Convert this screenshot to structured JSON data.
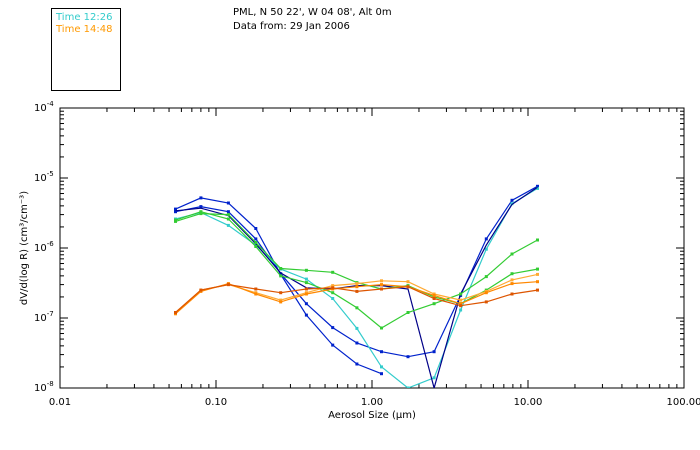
{
  "header": {
    "location": "PML, N 50 22', W 04 08', Alt 0m",
    "date": "Data from: 29 Jan 2006"
  },
  "legend": [
    {
      "label": "Time 12:26",
      "color": "#33cccc"
    },
    {
      "label": "Time 14:48",
      "color": "#ff9900"
    }
  ],
  "chart_data": {
    "type": "line",
    "title": "",
    "xlabel": "Aerosol Size (μm)",
    "ylabel": "dV/d(log R) (cm³/cm⁻³)",
    "xscale": "log",
    "yscale": "log",
    "xlim": [
      0.01,
      100
    ],
    "ylim": [
      1e-08,
      0.0001
    ],
    "x_tick_labels": [
      "0.01",
      "0.10",
      "1.00",
      "10.00",
      "100.00"
    ],
    "y_tick_labels": [
      {
        "mantissa": "10",
        "exp": "-8"
      },
      {
        "mantissa": "10",
        "exp": "-7"
      },
      {
        "mantissa": "10",
        "exp": "-6"
      },
      {
        "mantissa": "10",
        "exp": "-5"
      },
      {
        "mantissa": "10",
        "exp": "-4"
      }
    ],
    "series": [
      {
        "name": "blue-1",
        "color": "#0022cc",
        "marker": true,
        "x": [
          0.055,
          0.08,
          0.12,
          0.18,
          0.26,
          0.38,
          0.56,
          0.8,
          1.15
        ],
        "y": [
          3.6e-06,
          5.2e-06,
          4.4e-06,
          1.9e-06,
          4.2e-07,
          1.1e-07,
          4.1e-08,
          2.2e-08,
          1.6e-08
        ]
      },
      {
        "name": "blue-2",
        "color": "#0022cc",
        "marker": true,
        "x": [
          0.055,
          0.08,
          0.12,
          0.18,
          0.26,
          0.38,
          0.56,
          0.8,
          1.15,
          1.7,
          2.5,
          3.7,
          5.4,
          7.9,
          11.5
        ],
        "y": [
          3.3e-06,
          3.9e-06,
          3.3e-06,
          1.35e-06,
          4.3e-07,
          1.6e-07,
          7.3e-08,
          4.4e-08,
          3.3e-08,
          2.8e-08,
          3.3e-08,
          2.1e-07,
          1.35e-06,
          4.8e-06,
          7.6e-06
        ]
      },
      {
        "name": "cyan",
        "color": "#33cccc",
        "marker": true,
        "x": [
          0.055,
          0.08,
          0.12,
          0.18,
          0.26,
          0.38,
          0.56,
          0.8,
          1.15,
          1.7,
          2.5,
          3.7,
          5.4,
          7.9,
          11.5
        ],
        "y": [
          2.6e-06,
          3.2e-06,
          2.1e-06,
          1.1e-06,
          5e-07,
          3.6e-07,
          1.9e-07,
          7.1e-08,
          2e-08,
          1e-08,
          1.4e-08,
          1.3e-07,
          9.6e-07,
          4.3e-06,
          7.1e-06
        ]
      },
      {
        "name": "dark-blue",
        "color": "#000088",
        "marker": false,
        "x": [
          0.055,
          0.08,
          0.12,
          0.18,
          0.26,
          0.38,
          0.56,
          0.8,
          1.15,
          1.7,
          2.5,
          3.7,
          5.4,
          7.9,
          11.5
        ],
        "y": [
          3.4e-06,
          3.7e-06,
          2.9e-06,
          1.15e-06,
          4.4e-07,
          2.7e-07,
          2.6e-07,
          2.9e-07,
          2.9e-07,
          2.6e-07,
          1e-08,
          2.2e-07,
          1.1e-06,
          4.2e-06,
          7.4e-06
        ]
      },
      {
        "name": "green-1",
        "color": "#33cc33",
        "marker": true,
        "x": [
          0.055,
          0.08,
          0.12,
          0.18,
          0.26,
          0.38,
          0.56,
          0.8,
          1.15,
          1.7,
          2.5,
          3.7,
          5.4,
          7.9,
          11.5
        ],
        "y": [
          2.4e-06,
          3.1e-06,
          3e-06,
          1.2e-06,
          5.1e-07,
          4.8e-07,
          4.5e-07,
          3.2e-07,
          2.6e-07,
          2.9e-07,
          2e-07,
          1.6e-07,
          2.5e-07,
          4.3e-07,
          5e-07
        ]
      },
      {
        "name": "green-2",
        "color": "#33cc33",
        "marker": true,
        "x": [
          0.055,
          0.08,
          0.12,
          0.18,
          0.26,
          0.38,
          0.56,
          0.8,
          1.15,
          1.7,
          2.5,
          3.7,
          5.4,
          7.9,
          11.5
        ],
        "y": [
          2.5e-06,
          3.3e-06,
          2.6e-06,
          1.05e-06,
          4e-07,
          3.2e-07,
          2.3e-07,
          1.4e-07,
          7.2e-08,
          1.2e-07,
          1.6e-07,
          2.2e-07,
          3.9e-07,
          8.2e-07,
          1.3e-06
        ]
      },
      {
        "name": "light-orange",
        "color": "#ffaa33",
        "marker": true,
        "x": [
          0.055,
          0.08,
          0.12,
          0.18,
          0.26,
          0.38,
          0.56,
          0.8,
          1.15,
          1.7,
          2.5,
          3.7,
          5.4,
          7.9,
          11.5
        ],
        "y": [
          1.2e-07,
          2.5e-07,
          3e-07,
          2.3e-07,
          1.8e-07,
          2.3e-07,
          2.9e-07,
          3.1e-07,
          3.4e-07,
          3.3e-07,
          2.2e-07,
          1.8e-07,
          2.4e-07,
          3.5e-07,
          4.2e-07
        ]
      },
      {
        "name": "orange",
        "color": "#ff8800",
        "marker": true,
        "x": [
          0.055,
          0.08,
          0.12,
          0.18,
          0.26,
          0.38,
          0.56,
          0.8,
          1.15,
          1.7,
          2.5,
          3.7,
          5.4,
          7.9,
          11.5
        ],
        "y": [
          1.15e-07,
          2.4e-07,
          3.1e-07,
          2.2e-07,
          1.7e-07,
          2.2e-07,
          2.6e-07,
          2.8e-07,
          3e-07,
          2.8e-07,
          2.1e-07,
          1.6e-07,
          2.3e-07,
          3.1e-07,
          3.3e-07
        ]
      },
      {
        "name": "dark-orange",
        "color": "#dd5500",
        "marker": true,
        "x": [
          0.055,
          0.08,
          0.12,
          0.18,
          0.26,
          0.38,
          0.56,
          0.8,
          1.15,
          1.7,
          2.5,
          3.7,
          5.4,
          7.9,
          11.5
        ],
        "y": [
          1.2e-07,
          2.5e-07,
          3e-07,
          2.6e-07,
          2.3e-07,
          2.6e-07,
          2.7e-07,
          2.4e-07,
          2.6e-07,
          2.8e-07,
          1.9e-07,
          1.5e-07,
          1.7e-07,
          2.2e-07,
          2.5e-07
        ]
      }
    ]
  }
}
